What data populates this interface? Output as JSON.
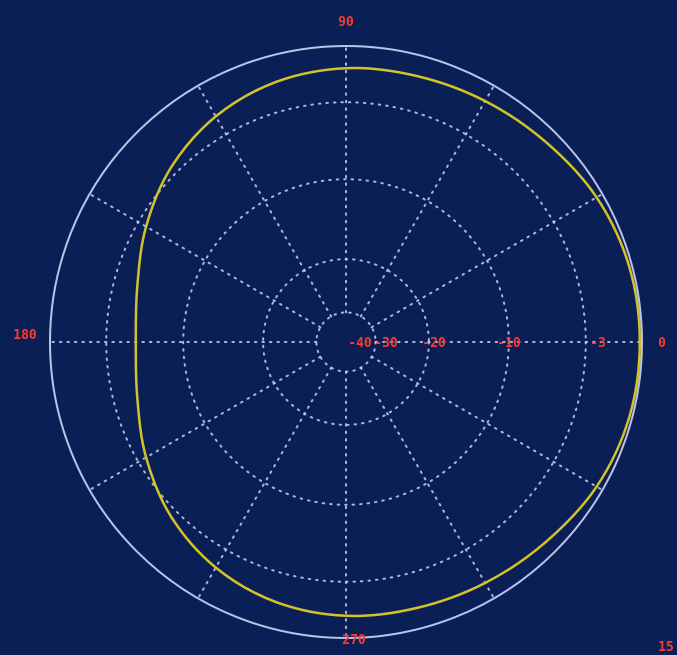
{
  "chart_data": {
    "type": "polar-line",
    "title": "",
    "angle_labels": [
      {
        "angle": 0,
        "text": "0"
      },
      {
        "angle": 90,
        "text": "90"
      },
      {
        "angle": 180,
        "text": "180"
      },
      {
        "angle": 270,
        "text": "270"
      }
    ],
    "radial_labels": [
      "-40",
      "-30",
      "-20",
      "-10",
      "-3"
    ],
    "radial_label_db": [
      -40,
      -30,
      -20,
      -10,
      -3
    ],
    "corner_label": "15",
    "r_range_db": [
      -40,
      0
    ],
    "radial_divisions_deg": 30,
    "grid": true,
    "colors": {
      "background": "#0b1f57",
      "outer_circle": "#b8c4ea",
      "grid": "#c8d0ee",
      "labels": "#ff3a2a",
      "trace": "#d4c22a"
    },
    "series": [
      {
        "angles_deg": [
          0,
          15,
          30,
          45,
          60,
          75,
          90,
          105,
          120,
          135,
          150,
          165,
          180,
          195,
          210,
          225,
          240,
          255,
          270,
          285,
          300,
          315,
          330,
          345
        ],
        "values_db": [
          -0.3,
          -0.4,
          -0.9,
          -1.8,
          -2.4,
          -2.8,
          -3.0,
          -3.6,
          -4.8,
          -6.6,
          -8.8,
          -10.8,
          -11.6,
          -10.8,
          -8.8,
          -6.6,
          -4.8,
          -3.6,
          -3.0,
          -2.8,
          -2.4,
          -1.8,
          -0.9,
          -0.4
        ]
      }
    ]
  }
}
